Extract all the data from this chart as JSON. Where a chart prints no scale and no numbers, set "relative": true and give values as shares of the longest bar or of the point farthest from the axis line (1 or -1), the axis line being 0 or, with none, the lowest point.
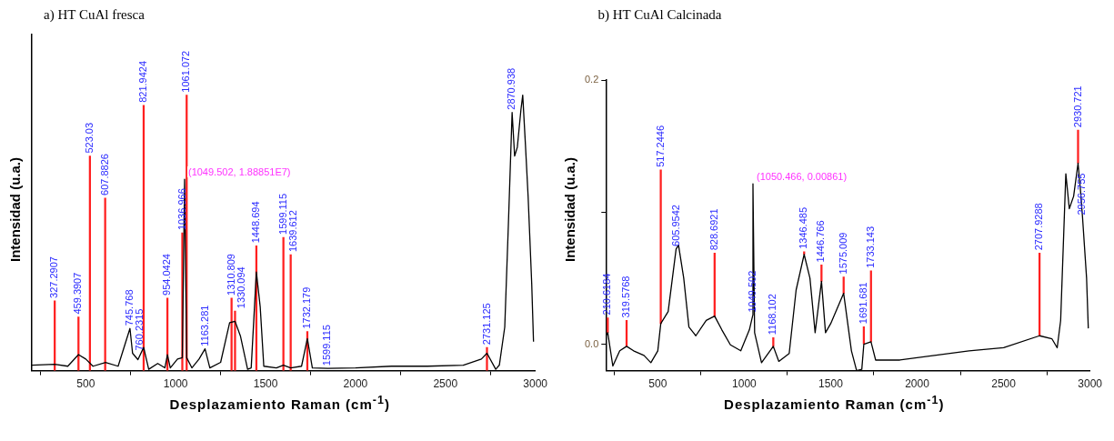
{
  "chart_data": [
    {
      "type": "line",
      "title": "a) HT CuAl fresca",
      "xlabel": "Desplazamiento Raman (cm$^{-1}$)",
      "ylabel": "Intensidad (u.a.)",
      "relative": true,
      "xlim": [
        200,
        3000
      ],
      "xticks": [
        500,
        1000,
        1500,
        2000,
        2500,
        3000
      ],
      "series": [
        {
          "color": "#000000",
          "x": [
            200,
            327.2907,
            400,
            459.3907,
            500,
            540,
            610,
            680,
            745.768,
            760.2315,
            790,
            821.9424,
            850,
            900,
            940,
            954.0424,
            970,
            1010,
            1036.966,
            1049.502,
            1061.072,
            1090,
            1130,
            1163.281,
            1190,
            1250,
            1300,
            1330.094,
            1360,
            1400,
            1420,
            1448.694,
            1470,
            1490,
            1560,
            1599.115,
            1639.612,
            1700,
            1732.179,
            1760,
            1846,
            2000,
            2200,
            2400,
            2600,
            2700,
            2731.125,
            2780,
            2800,
            2830,
            2850,
            2870.938,
            2885,
            2900,
            2920,
            2930,
            2945,
            2960,
            2980,
            2990
          ],
          "values": [
            0.02,
            0.023,
            0.016,
            0.058,
            0.042,
            0.016,
            0.03,
            0.016,
            0.153,
            0.063,
            0.04,
            0.084,
            0.005,
            0.026,
            0.01,
            0.058,
            0.01,
            0.042,
            0.047,
            0.695,
            0.047,
            0.01,
            0.042,
            0.079,
            0.01,
            0.03,
            0.174,
            0.179,
            0.126,
            0.005,
            0.01,
            0.358,
            0.232,
            0.016,
            0.01,
            0.02,
            0.01,
            0.016,
            0.116,
            0.01,
            0.008,
            0.01,
            0.016,
            0.016,
            0.02,
            0.042,
            0.063,
            0.005,
            0.02,
            0.158,
            0.526,
            0.937,
            0.779,
            0.811,
            0.947,
            1,
            0.821,
            0.632,
            0.316,
            0.105
          ]
        },
        {
          "type": "bar",
          "color": "#ff2020",
          "x": [
            327.2907,
            459.3907,
            523.03,
            607.8826,
            821.9424,
            954.0424,
            1036.966,
            1061.072,
            1310.809,
            1330.094,
            1448.694,
            1599.115,
            1639.612,
            1732.179,
            2731.125
          ],
          "values": [
            0.253,
            0.195,
            0.779,
            0.626,
            0.963,
            0.263,
            0.5,
            1,
            0.263,
            0.216,
            0.453,
            0.484,
            0.421,
            0.142,
            0.084
          ]
        }
      ],
      "annotations": [
        {
          "text": "327.2907",
          "x": 327.2907,
          "y": 0.253
        },
        {
          "text": "459.3907",
          "x": 459.3907,
          "y": 0.195
        },
        {
          "text": "523.03",
          "x": 523.03,
          "y": 0.779
        },
        {
          "text": "607.8826",
          "x": 607.8826,
          "y": 0.626
        },
        {
          "text": "745.768",
          "x": 745.768,
          "y": 0.153
        },
        {
          "text": "760.2315",
          "x": 760.2315,
          "y": 0.063
        },
        {
          "text": "821.9424",
          "x": 821.9424,
          "y": 0.963
        },
        {
          "text": "954.0424",
          "x": 954.0424,
          "y": 0.263
        },
        {
          "text": "1036.966",
          "x": 1036.966,
          "y": 0.5
        },
        {
          "text": "1061.072",
          "x": 1061.072,
          "y": 1
        },
        {
          "text": "(1049.502, 1.88851E7)",
          "x": 1049.502,
          "y": 0.695
        },
        {
          "text": "1163.281",
          "x": 1163.281,
          "y": 0.079
        },
        {
          "text": "1310.809",
          "x": 1310.809,
          "y": 0.263
        },
        {
          "text": "1330.094",
          "x": 1330.094,
          "y": 0.216
        },
        {
          "text": "1448.694",
          "x": 1448.694,
          "y": 0.453
        },
        {
          "text": "1599.115",
          "x": 1599.115,
          "y": 0.484
        },
        {
          "text": "1639.612",
          "x": 1639.612,
          "y": 0.421
        },
        {
          "text": "1732.179",
          "x": 1732.179,
          "y": 0.142
        },
        {
          "text": "1599.115",
          "x": 1846,
          "y": 0.008
        },
        {
          "text": "2731.125",
          "x": 2731.125,
          "y": 0.084
        },
        {
          "text": "2870.938",
          "x": 2870.938,
          "y": 0.937
        }
      ]
    },
    {
      "type": "line",
      "title": "b) HT CuAl Calcinada",
      "xlabel": "Desplazamiento Raman (cm$^{-1}$)",
      "ylabel": "Intensidad (u.a.)",
      "xlim": [
        200,
        3000
      ],
      "xticks": [
        500,
        1000,
        1500,
        2000,
        2500,
        3000
      ],
      "ylim": [
        -0.02,
        0.2
      ],
      "yticks": [
        {
          "value": 0,
          "label": "0.0"
        },
        {
          "value": 0.1,
          "label": null
        },
        {
          "value": 0.2,
          "label": "0.2"
        }
      ],
      "series": [
        {
          "color": "#000000",
          "x": [
            200,
            210.6184,
            240,
            280,
            319.5768,
            360,
            420,
            460,
            500,
            517.2446,
            560,
            605.9542,
            620,
            650,
            680,
            720,
            780,
            828.6921,
            870,
            920,
            980,
            1030,
            1049.502,
            1050.466,
            1060,
            1100,
            1168.102,
            1200,
            1260,
            1300,
            1346.485,
            1380,
            1410,
            1446.766,
            1470,
            1500,
            1575.009,
            1620,
            1650,
            1680,
            1691.681,
            1733.143,
            1760,
            1900,
            2100,
            2300,
            2500,
            2707.9288,
            2780,
            2810,
            2830,
            2860,
            2880,
            2905,
            2930.721,
            2945,
            2956.755,
            2980,
            2990
          ],
          "values": [
            0.0064,
            0.0087,
            -0.0165,
            -0.005,
            -0.0016,
            -0.005,
            -0.0085,
            -0.014,
            -0.005,
            0.0156,
            0.0247,
            0.072,
            0.075,
            0.05,
            0.013,
            0.0064,
            0.018,
            0.0213,
            0.011,
            -0.0005,
            -0.005,
            0.011,
            0.022,
            0.1214,
            0.0087,
            -0.014,
            -0.0016,
            -0.013,
            -0.007,
            0.041,
            0.068,
            0.05,
            0.0087,
            0.0476,
            0.0087,
            0.0156,
            0.0385,
            -0.005,
            -0.02,
            -0.019,
            0,
            0.0018,
            -0.012,
            -0.012,
            -0.0085,
            -0.005,
            -0.0027,
            0.0064,
            0.004,
            -0.0027,
            0.0179,
            0.129,
            0.1026,
            0.112,
            0.137,
            0.116,
            0.0957,
            0.05,
            0.012
          ]
        },
        {
          "type": "bar",
          "color": "#ff2020",
          "x": [
            210.6184,
            319.5768,
            517.2446,
            828.6921,
            1168.102,
            1346.485,
            1446.766,
            1575.009,
            1691.681,
            1733.143,
            2707.9288,
            2930.721
          ],
          "base": [
            0.0087,
            -0.0016,
            0.0156,
            0.0213,
            -0.0016,
            0.068,
            0.0476,
            0.0385,
            0,
            0.0018,
            0.0064,
            0.137
          ],
          "values": [
            0.0113,
            0.0196,
            0.1164,
            0.0477,
            0.0066,
            0.002,
            0.0124,
            0.0125,
            0.0133,
            0.0538,
            0.0626,
            0.025
          ]
        }
      ],
      "annotations": [
        {
          "text": "210.6184",
          "x": 210.6184,
          "y": 0.02
        },
        {
          "text": "319.5768",
          "x": 319.5768,
          "y": 0.018
        },
        {
          "text": "517.2446",
          "x": 517.2446,
          "y": 0.132
        },
        {
          "text": "605.9542",
          "x": 605.9542,
          "y": 0.072
        },
        {
          "text": "828.6921",
          "x": 828.6921,
          "y": 0.069
        },
        {
          "text": "(1050.466, 0.00861)",
          "x": 1050.466,
          "y": 0.1214
        },
        {
          "text": "1049.502",
          "x": 1049.502,
          "y": 0.022
        },
        {
          "text": "1168.102",
          "x": 1168.102,
          "y": 0.005
        },
        {
          "text": "1346.485",
          "x": 1346.485,
          "y": 0.07
        },
        {
          "text": "1446.766",
          "x": 1446.766,
          "y": 0.06
        },
        {
          "text": "1575.009",
          "x": 1575.009,
          "y": 0.051
        },
        {
          "text": "1691.681",
          "x": 1691.681,
          "y": 0.0133
        },
        {
          "text": "1733.143",
          "x": 1733.143,
          "y": 0.0556
        },
        {
          "text": "2707.9288",
          "x": 2707.9288,
          "y": 0.069
        },
        {
          "text": "2930.721",
          "x": 2930.721,
          "y": 0.162
        },
        {
          "text": "2956.755",
          "x": 2956.755,
          "y": 0.0957
        }
      ]
    }
  ]
}
